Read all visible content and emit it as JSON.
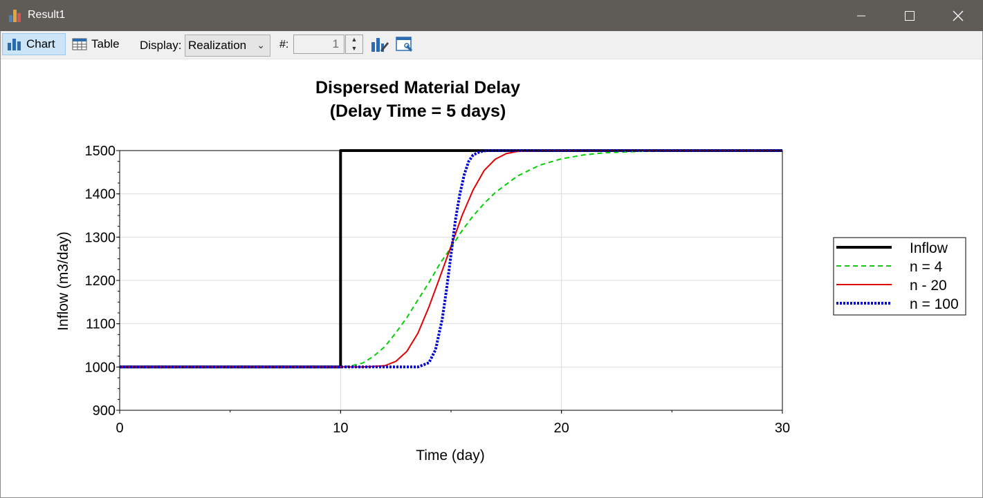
{
  "window": {
    "title": "Result1",
    "minimize_icon": "minimize-icon",
    "maximize_icon": "maximize-icon",
    "close_icon": "close-icon"
  },
  "toolbar": {
    "chart_label": "Chart",
    "table_label": "Table",
    "display_label": "Display:",
    "display_value": "Realization",
    "number_label": "#:",
    "number_value": "1"
  },
  "chart_data": {
    "type": "line",
    "title": "Dispersed Material Delay",
    "subtitle": "(Delay Time  = 5 days)",
    "xlabel": "Time (day)",
    "ylabel": "Inflow (m3/day)",
    "xlim": [
      0,
      30
    ],
    "ylim": [
      900,
      1500
    ],
    "xticks": [
      "0",
      "10",
      "20",
      "30"
    ],
    "yticks": [
      "900",
      "1000",
      "1100",
      "1200",
      "1300",
      "1400",
      "1500"
    ],
    "grid": true,
    "legend_position": "right",
    "series": [
      {
        "name": "Inflow",
        "color": "#000000",
        "style": "solid",
        "x": [
          0,
          10,
          10,
          30
        ],
        "y": [
          1000,
          1000,
          1500,
          1500
        ]
      },
      {
        "name": "n = 4",
        "color": "#00d000",
        "style": "dashed",
        "x": [
          0,
          10,
          10.5,
          11,
          11.5,
          12,
          12.5,
          13,
          13.5,
          14,
          14.5,
          15,
          15.5,
          16,
          16.5,
          17,
          18,
          19,
          20,
          21,
          22,
          23,
          24,
          25,
          30
        ],
        "y": [
          1000,
          1000,
          1003,
          1009,
          1025,
          1047,
          1079,
          1114,
          1155,
          1195,
          1239,
          1276,
          1315,
          1349,
          1378,
          1403,
          1441,
          1466,
          1481,
          1490,
          1495,
          1497,
          1499,
          1500,
          1500
        ]
      },
      {
        "name": "n - 20",
        "color": "#e00000",
        "style": "solid",
        "x": [
          0,
          11,
          12,
          12.5,
          13,
          13.5,
          14,
          14.5,
          15,
          15.5,
          16,
          16.5,
          17,
          17.5,
          18,
          19,
          30
        ],
        "y": [
          1000,
          1000,
          1003,
          1013,
          1036,
          1078,
          1139,
          1208,
          1279,
          1350,
          1409,
          1454,
          1480,
          1493,
          1498,
          1500,
          1500
        ]
      },
      {
        "name": "n = 100",
        "color": "#0000d8",
        "style": "dotted",
        "x": [
          0,
          13.5,
          14,
          14.3,
          14.6,
          14.8,
          15,
          15.2,
          15.4,
          15.6,
          15.8,
          16,
          16.3,
          16.6,
          17,
          30
        ],
        "y": [
          1000,
          1000,
          1010,
          1040,
          1110,
          1180,
          1260,
          1340,
          1400,
          1445,
          1475,
          1490,
          1497,
          1500,
          1500,
          1500
        ]
      }
    ]
  }
}
